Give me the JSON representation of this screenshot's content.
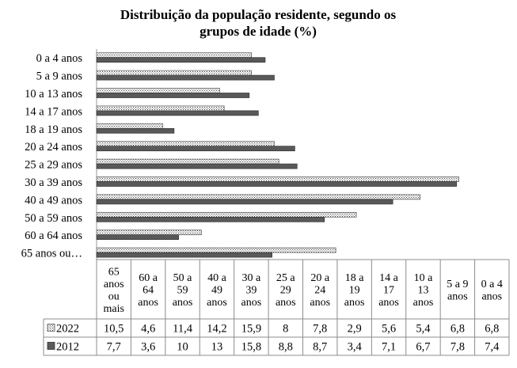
{
  "chart_data": {
    "type": "bar",
    "orientation": "horizontal",
    "title_lines": [
      "Distribuição da população residente, segundo os",
      "grupos de idade (%)"
    ],
    "categories": [
      "0 a 4 anos",
      "5 a 9 anos",
      "10 a 13 anos",
      "14 a 17 anos",
      "18 a 19 anos",
      "20 a 24 anos",
      "25 a 29 anos",
      "30 a 39 anos",
      "40 a 49 anos",
      "50 a 59 anos",
      "60 a 64 anos",
      "65 anos ou…"
    ],
    "series": [
      {
        "name": "2022",
        "values": [
          6.8,
          6.8,
          5.4,
          5.6,
          2.9,
          7.8,
          8,
          15.9,
          14.2,
          11.4,
          4.6,
          10.5
        ],
        "pattern": "dotted",
        "color": "#ffffff"
      },
      {
        "name": "2012",
        "values": [
          7.4,
          7.8,
          6.7,
          7.1,
          3.4,
          8.7,
          8.8,
          15.8,
          13,
          10,
          3.6,
          7.7
        ],
        "pattern": "solid",
        "color": "#595959"
      }
    ],
    "xlim": [
      0,
      18
    ],
    "grid": false,
    "legend": "data table",
    "data_table": {
      "column_headers": [
        [
          "65",
          "anos",
          "ou",
          "mais"
        ],
        [
          "60 a",
          "64",
          "anos"
        ],
        [
          "50 a",
          "59",
          "anos"
        ],
        [
          "40 a",
          "49",
          "anos"
        ],
        [
          "30 a",
          "39",
          "anos"
        ],
        [
          "25 a",
          "29",
          "anos"
        ],
        [
          "20 a",
          "24",
          "anos"
        ],
        [
          "18 a",
          "19",
          "anos"
        ],
        [
          "14 a",
          "17",
          "anos"
        ],
        [
          "10 a",
          "13",
          "anos"
        ],
        [
          "5 a 9",
          "anos"
        ],
        [
          "0 a 4",
          "anos"
        ]
      ],
      "rows": [
        {
          "label": "2022",
          "cells": [
            "10,5",
            "4,6",
            "11,4",
            "14,2",
            "15,9",
            "8",
            "7,8",
            "2,9",
            "5,6",
            "5,4",
            "6,8",
            "6,8"
          ]
        },
        {
          "label": "2012",
          "cells": [
            "7,7",
            "3,6",
            "10",
            "13",
            "15,8",
            "8,8",
            "8,7",
            "3,4",
            "7,1",
            "6,7",
            "7,8",
            "7,4"
          ]
        }
      ]
    }
  }
}
